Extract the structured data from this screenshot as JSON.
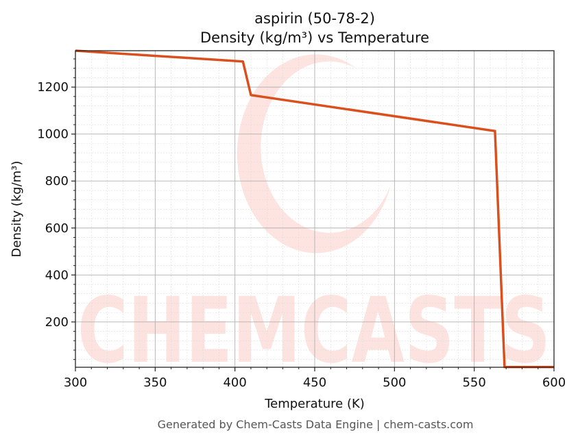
{
  "chart_data": {
    "type": "line",
    "title": "aspirin (50-78-2)",
    "subtitle": "Density (kg/m³) vs Temperature",
    "xlabel": "Temperature (K)",
    "ylabel": "Density (kg/m³)",
    "xlim": [
      300,
      600
    ],
    "ylim": [
      7,
      1355
    ],
    "xticks": [
      300,
      350,
      400,
      450,
      500,
      550,
      600
    ],
    "yticks": [
      200,
      400,
      600,
      800,
      1000,
      1200
    ],
    "grid": true,
    "series": [
      {
        "color": "#d9501e",
        "x": [
          300,
          405,
          410,
          563,
          569,
          600
        ],
        "y": [
          1355,
          1309,
          1166,
          1013,
          8,
          8
        ]
      }
    ],
    "watermark": "CHEMCASTS",
    "footer": "Generated by Chem-Casts Data Engine | chem-casts.com"
  }
}
